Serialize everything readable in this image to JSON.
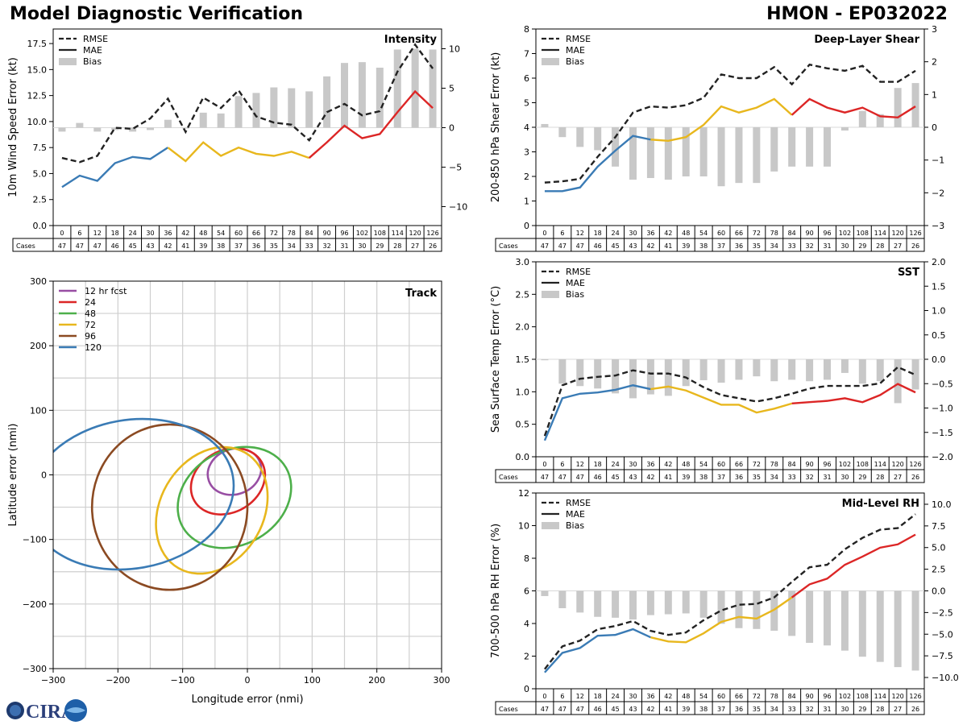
{
  "header": {
    "title": "Model Diagnostic Verification",
    "model_storm": "HMON - EP032022"
  },
  "colors": {
    "rmse": "#222222",
    "bias": "#c8c8c8",
    "seg1": "#3a7bb5",
    "seg2": "#e8b71d",
    "seg3": "#dc2626",
    "tr12": "#984ea3",
    "tr24": "#dc2626",
    "tr48": "#4daf4a",
    "tr72": "#e8b71d",
    "tr96": "#8b4a22",
    "tr120": "#3a7bb5"
  },
  "hours": [
    "0",
    "6",
    "12",
    "18",
    "24",
    "30",
    "36",
    "42",
    "48",
    "54",
    "60",
    "66",
    "72",
    "78",
    "84",
    "90",
    "96",
    "102",
    "108",
    "114",
    "120",
    "126"
  ],
  "cases": [
    "47",
    "47",
    "47",
    "46",
    "45",
    "43",
    "42",
    "41",
    "39",
    "38",
    "37",
    "36",
    "35",
    "34",
    "33",
    "32",
    "31",
    "30",
    "29",
    "28",
    "27",
    "26"
  ],
  "cases_label": "Cases",
  "logo": {
    "text": "CIRA",
    "alt": "CIRA logo"
  },
  "chart_data": [
    {
      "type": "line",
      "id": "intensity",
      "title": "Intensity",
      "ylabel": "10m Wind Speed Error (kt)",
      "y2label": "",
      "ylim": [
        0,
        18.9
      ],
      "yticks": [
        "0.0",
        "2.5",
        "5.0",
        "7.5",
        "10.0",
        "12.5",
        "15.0",
        "17.5"
      ],
      "y2lim": [
        -12.4,
        12.5
      ],
      "y2ticks": [
        "−10",
        "−5",
        "0",
        "5",
        "10"
      ],
      "legend": [
        "RMSE",
        "MAE",
        "Bias"
      ],
      "rmse": [
        6.5,
        6.1,
        6.7,
        9.4,
        9.3,
        10.3,
        12.2,
        9.0,
        12.3,
        11.3,
        13.0,
        10.5,
        9.9,
        9.7,
        8.2,
        10.9,
        11.7,
        10.6,
        11.0,
        14.8,
        17.4,
        15.1
      ],
      "mae": [
        3.7,
        4.8,
        4.3,
        6.0,
        6.6,
        6.4,
        7.5,
        6.2,
        8.0,
        6.7,
        7.5,
        6.9,
        6.7,
        7.1,
        6.5,
        8.0,
        9.6,
        8.4,
        8.8,
        10.9,
        12.9,
        11.3
      ],
      "bias": [
        -0.5,
        0.6,
        -0.5,
        -0.3,
        -0.5,
        -0.3,
        1.0,
        -0.1,
        1.9,
        1.8,
        4.0,
        4.4,
        5.1,
        5.0,
        4.6,
        6.5,
        8.2,
        8.3,
        7.6,
        9.9,
        10.0,
        9.9
      ]
    },
    {
      "type": "line",
      "id": "shear",
      "title": "Deep-Layer Shear",
      "ylabel": "200-850 hPa Shear Error (kt)",
      "y2label": "",
      "ylim": [
        0,
        8
      ],
      "yticks": [
        "0",
        "1",
        "2",
        "3",
        "4",
        "5",
        "6",
        "7",
        "8"
      ],
      "y2lim": [
        -3,
        3
      ],
      "y2ticks": [
        "−3",
        "−2",
        "−1",
        "0",
        "1",
        "2",
        "3"
      ],
      "legend": [
        "RMSE",
        "MAE",
        "Bias"
      ],
      "rmse": [
        1.75,
        1.8,
        1.9,
        2.8,
        3.6,
        4.6,
        4.85,
        4.8,
        4.9,
        5.2,
        6.15,
        6.0,
        6.0,
        6.45,
        5.75,
        6.55,
        6.4,
        6.3,
        6.5,
        5.85,
        5.85,
        6.3
      ],
      "mae": [
        1.4,
        1.4,
        1.55,
        2.4,
        3.05,
        3.65,
        3.5,
        3.45,
        3.6,
        4.1,
        4.85,
        4.6,
        4.8,
        5.15,
        4.5,
        5.15,
        4.8,
        4.6,
        4.8,
        4.45,
        4.4,
        4.85
      ],
      "bias": [
        0.1,
        -0.3,
        -0.6,
        -0.7,
        -1.2,
        -1.6,
        -1.55,
        -1.6,
        -1.5,
        -1.5,
        -1.8,
        -1.7,
        -1.7,
        -1.35,
        -1.2,
        -1.2,
        -1.2,
        -0.1,
        0.5,
        0.4,
        1.2,
        1.35
      ]
    },
    {
      "type": "line",
      "id": "sst",
      "title": "SST",
      "ylabel": "Sea Surface Temp Error (°C)",
      "y2label": "",
      "ylim": [
        0,
        3
      ],
      "yticks": [
        "0.0",
        "0.5",
        "1.0",
        "1.5",
        "2.0",
        "2.5",
        "3.0"
      ],
      "y2lim": [
        -2,
        2
      ],
      "y2ticks": [
        "−2.0",
        "−1.5",
        "−1.0",
        "−0.5",
        "0.0",
        "0.5",
        "1.0",
        "1.5",
        "2.0"
      ],
      "legend": [
        "RMSE",
        "MAE",
        "Bias"
      ],
      "rmse": [
        0.32,
        1.1,
        1.2,
        1.23,
        1.25,
        1.33,
        1.28,
        1.28,
        1.22,
        1.07,
        0.95,
        0.9,
        0.85,
        0.9,
        0.97,
        1.05,
        1.09,
        1.09,
        1.09,
        1.13,
        1.38,
        1.26
      ],
      "mae": [
        0.25,
        0.9,
        0.97,
        0.99,
        1.03,
        1.1,
        1.04,
        1.08,
        1.02,
        0.91,
        0.8,
        0.8,
        0.68,
        0.74,
        0.82,
        0.84,
        0.86,
        0.9,
        0.84,
        0.95,
        1.12,
        0.99
      ],
      "bias": [
        -0.02,
        -0.5,
        -0.55,
        -0.6,
        -0.7,
        -0.8,
        -0.72,
        -0.75,
        -0.55,
        -0.43,
        -0.48,
        -0.42,
        -0.35,
        -0.45,
        -0.42,
        -0.45,
        -0.42,
        -0.28,
        -0.5,
        -0.45,
        -0.9,
        -0.62
      ]
    },
    {
      "type": "line",
      "id": "rh",
      "title": "Mid-Level RH",
      "ylabel": "700-500 hPa RH Error (%)",
      "y2label": "",
      "ylim": [
        0,
        12
      ],
      "yticks": [
        "0",
        "2",
        "4",
        "6",
        "8",
        "10",
        "12"
      ],
      "y2lim": [
        -11.3,
        11.3
      ],
      "y2ticks": [
        "−10.0",
        "−7.5",
        "−5.0",
        "−2.5",
        "0.0",
        "2.5",
        "5.0",
        "7.5",
        "10.0"
      ],
      "legend": [
        "RMSE",
        "MAE",
        "Bias"
      ],
      "rmse": [
        1.2,
        2.6,
        2.95,
        3.65,
        3.85,
        4.15,
        3.55,
        3.3,
        3.45,
        4.2,
        4.8,
        5.15,
        5.2,
        5.6,
        6.55,
        7.45,
        7.6,
        8.55,
        9.25,
        9.75,
        9.85,
        10.7
      ],
      "mae": [
        1.0,
        2.2,
        2.5,
        3.25,
        3.3,
        3.65,
        3.15,
        2.9,
        2.85,
        3.4,
        4.1,
        4.4,
        4.3,
        4.85,
        5.6,
        6.4,
        6.75,
        7.6,
        8.1,
        8.65,
        8.85,
        9.45
      ],
      "bias": [
        -0.6,
        -2.0,
        -2.5,
        -3.0,
        -3.1,
        -3.3,
        -2.8,
        -2.7,
        -2.6,
        -3.1,
        -3.8,
        -4.3,
        -4.4,
        -4.6,
        -5.2,
        -6.0,
        -6.3,
        -6.9,
        -7.6,
        -8.2,
        -8.8,
        -9.2
      ]
    },
    {
      "type": "ellipse",
      "id": "track",
      "title": "Track",
      "xlabel": "Longitude error (nmi)",
      "ylabel": "Latitude error (nmi)",
      "xlim": [
        -300,
        300
      ],
      "ylim": [
        -300,
        300
      ],
      "xticks": [
        "−300",
        "−200",
        "−100",
        "0",
        "100",
        "200",
        "300"
      ],
      "yticks": [
        "−300",
        "−200",
        "−100",
        "0",
        "100",
        "200",
        "300"
      ],
      "legend": [
        "12 hr fcst",
        "24",
        "48",
        "72",
        "96",
        "120"
      ],
      "ellipses": [
        {
          "label": "12 hr fcst",
          "cx": -20,
          "cy": 5,
          "rx": 42,
          "ry": 35,
          "angle": -20
        },
        {
          "label": "24",
          "cx": -30,
          "cy": -10,
          "rx": 60,
          "ry": 48,
          "angle": -30
        },
        {
          "label": "48",
          "cx": -20,
          "cy": -35,
          "rx": 92,
          "ry": 73,
          "angle": -30
        },
        {
          "label": "72",
          "cx": -55,
          "cy": -55,
          "rx": 103,
          "ry": 80,
          "angle": -60
        },
        {
          "label": "96",
          "cx": -120,
          "cy": -50,
          "rx": 120,
          "ry": 128,
          "angle": 0
        },
        {
          "label": "120",
          "cx": -180,
          "cy": -30,
          "rx": 160,
          "ry": 115,
          "angle": -10
        }
      ]
    }
  ]
}
